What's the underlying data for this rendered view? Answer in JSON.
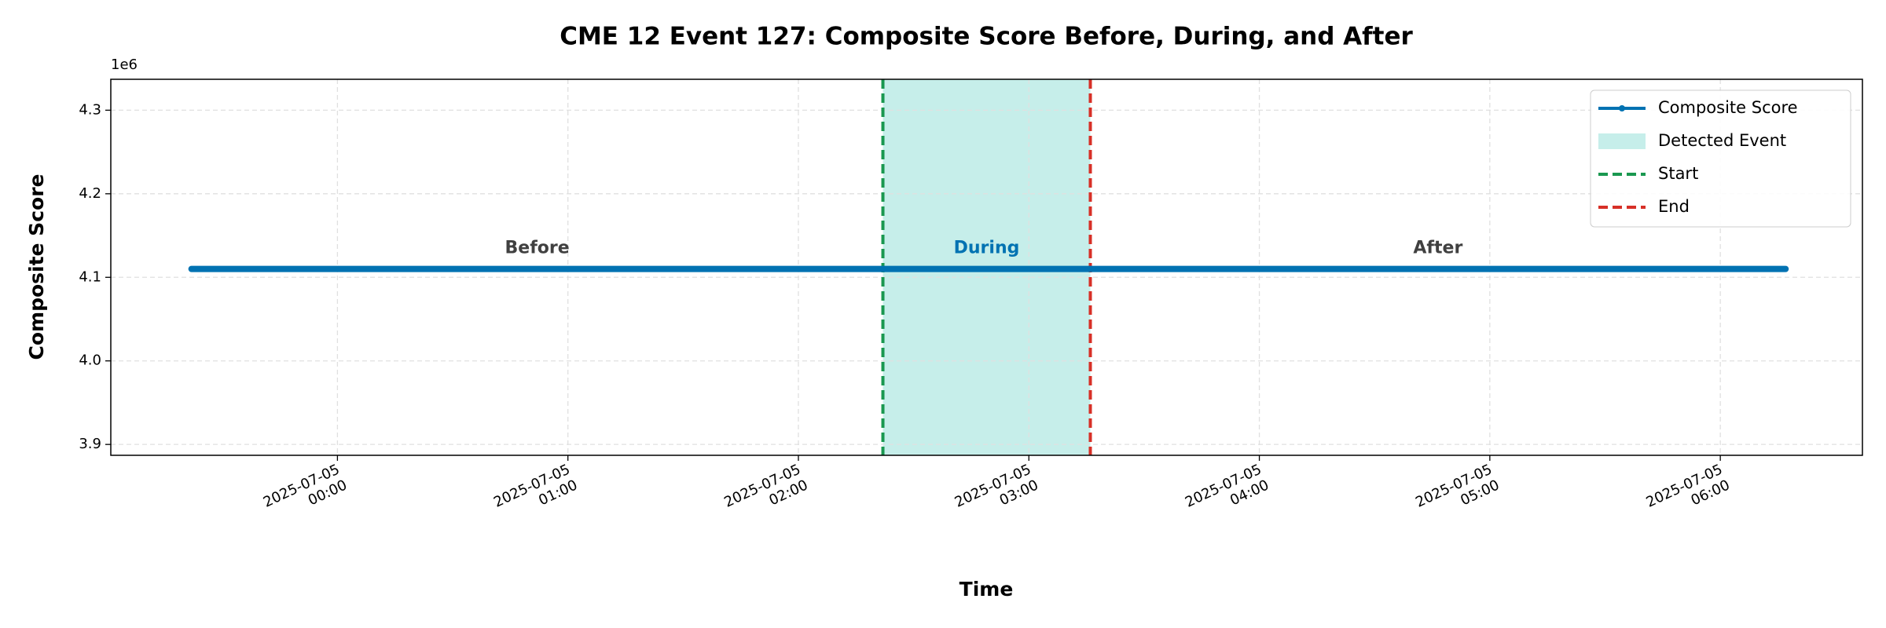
{
  "chart_data": {
    "type": "line",
    "title": "CME 12 Event 127: Composite Score Before, During, and After",
    "x_label": "Time",
    "y_label": "Composite Score",
    "y_offset_label": "1e6",
    "x": [
      "2025-07-04 23:22",
      "2025-07-05 00:00",
      "2025-07-05 00:30",
      "2025-07-05 01:00",
      "2025-07-05 01:30",
      "2025-07-05 02:00",
      "2025-07-05 02:30",
      "2025-07-05 03:00",
      "2025-07-05 03:30",
      "2025-07-05 04:00",
      "2025-07-05 04:30",
      "2025-07-05 05:00",
      "2025-07-05 05:30",
      "2025-07-05 06:00",
      "2025-07-05 06:17"
    ],
    "series": [
      {
        "name": "Composite Score",
        "color": "#0072b2",
        "values": [
          4110000,
          4110000,
          4110000,
          4110000,
          4110000,
          4110000,
          4110000,
          4110000,
          4110000,
          4110000,
          4110000,
          4110000,
          4110000,
          4110000,
          4110000
        ]
      }
    ],
    "event": {
      "label": "Detected Event",
      "color": "#c6eeea",
      "start": "2025-07-05 02:22",
      "end": "2025-07-05 03:16",
      "start_label": "Start",
      "start_color": "#1a9850",
      "end_label": "End",
      "end_color": "#d73027"
    },
    "annotations": {
      "before": "Before",
      "during": "During",
      "after": "After"
    },
    "xlim": [
      "2025-07-04 23:01",
      "2025-07-05 06:37"
    ],
    "xticks": [
      "2025-07-05 00:00",
      "2025-07-05 01:00",
      "2025-07-05 02:00",
      "2025-07-05 03:00",
      "2025-07-05 04:00",
      "2025-07-05 05:00",
      "2025-07-05 06:00"
    ],
    "ylim": [
      3887000,
      4337000
    ],
    "yticks": [
      {
        "value": 3900000,
        "label": "3.9"
      },
      {
        "value": 4000000,
        "label": "4.0"
      },
      {
        "value": 4100000,
        "label": "4.1"
      },
      {
        "value": 4200000,
        "label": "4.2"
      },
      {
        "value": 4300000,
        "label": "4.3"
      }
    ],
    "grid": true,
    "legend": "upper right"
  }
}
